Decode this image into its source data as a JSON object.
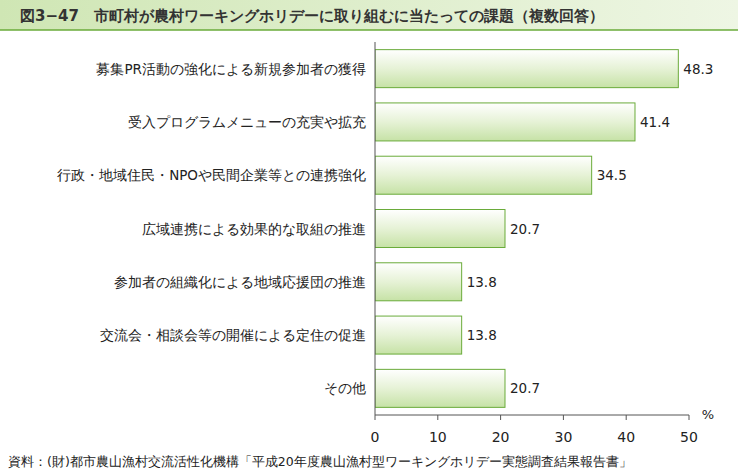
{
  "chart_data": {
    "type": "bar",
    "orientation": "horizontal",
    "title": "図3−47　市町村が農村ワーキングホリデーに取り組むに当たっての課題（複数回答）",
    "categories": [
      "募集PR活動の強化による新規参加者の獲得",
      "受入プログラムメニューの充実や拡充",
      "行政・地域住民・NPOや民間企業等との連携強化",
      "広域連携による効果的な取組の推進",
      "参加者の組織化による地域応援団の推進",
      "交流会・相談会等の開催による定住の促進",
      "その他"
    ],
    "values": [
      48.3,
      41.4,
      34.5,
      20.7,
      13.8,
      13.8,
      20.7
    ],
    "color": "#6aab3a",
    "xlim": [
      0,
      50
    ],
    "xticks": [
      0,
      10,
      20,
      30,
      40,
      50
    ],
    "x_label": "%",
    "source": "資料：(財)都市農山漁村交流活性化機構「平成20年度農山漁村型ワーキングホリデー実態調査結果報告書」",
    "data_labels": true,
    "grid": false
  }
}
